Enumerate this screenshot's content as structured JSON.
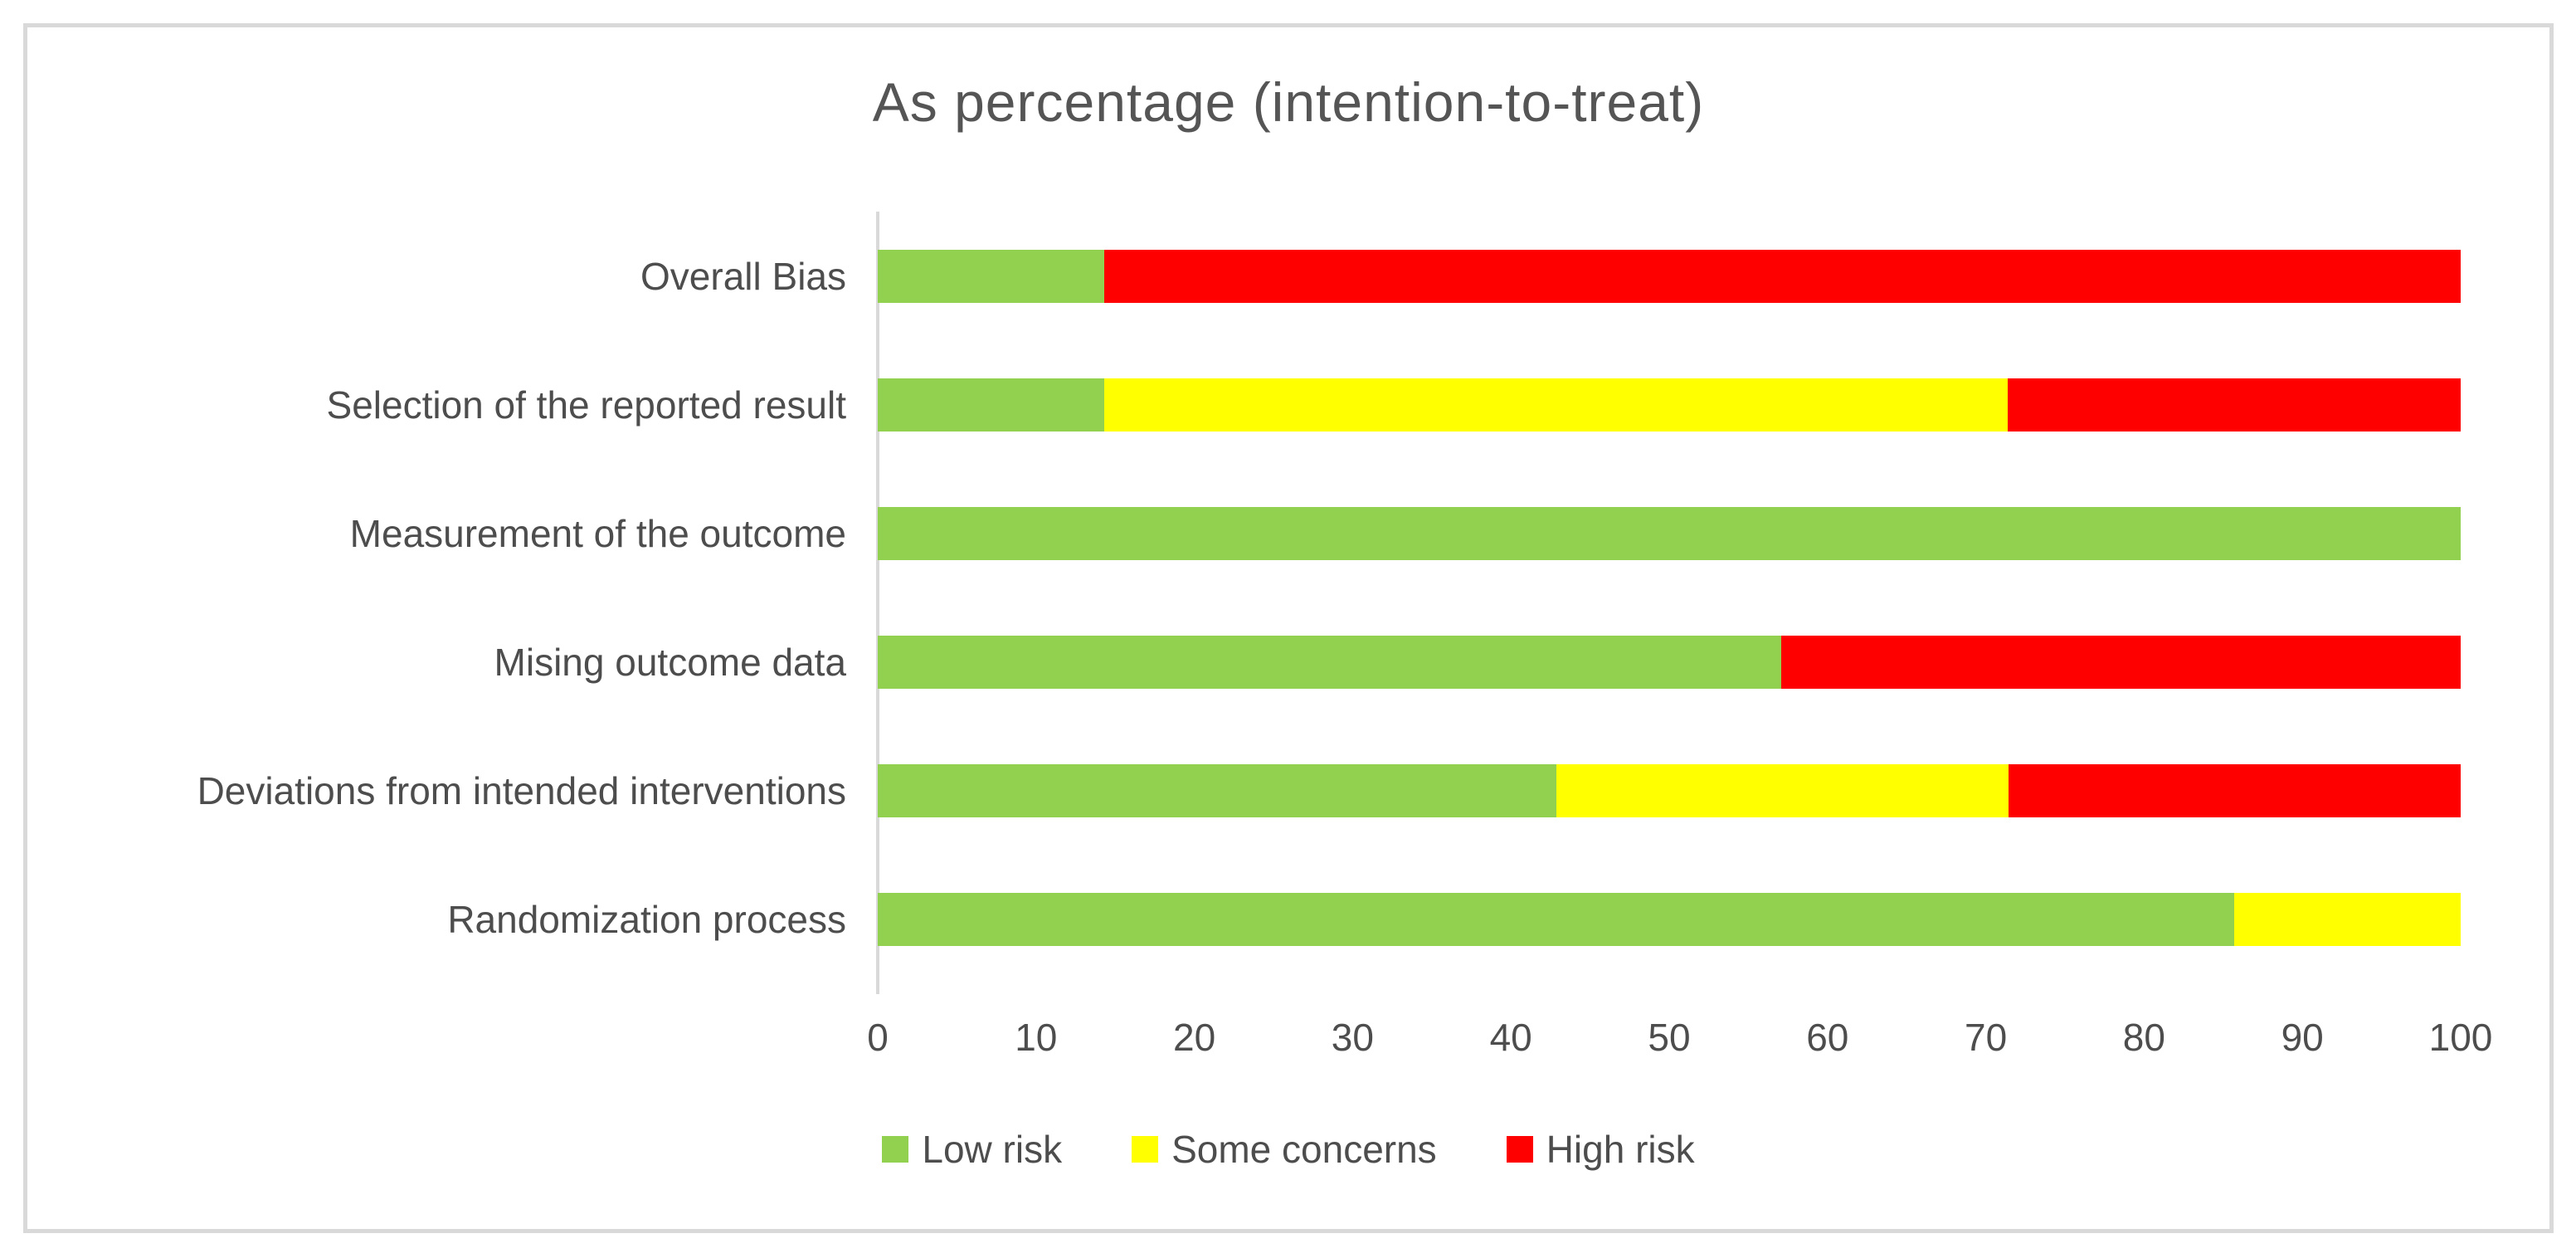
{
  "chart_data": {
    "type": "bar",
    "orientation": "horizontal",
    "stacked": true,
    "title": "As percentage (intention-to-treat)",
    "categories": [
      "Overall Bias",
      "Selection of the reported result",
      "Measurement of the outcome",
      "Mising outcome data",
      "Deviations from intended interventions",
      "Randomization process"
    ],
    "series": [
      {
        "name": "Low risk",
        "color": "#92D050",
        "values": [
          14.3,
          14.3,
          100,
          57.1,
          42.9,
          85.7
        ]
      },
      {
        "name": "Some concerns",
        "color": "#FFFF00",
        "values": [
          0,
          57.1,
          0,
          0,
          28.6,
          14.3
        ]
      },
      {
        "name": "High risk",
        "color": "#FF0000",
        "values": [
          85.7,
          28.6,
          0,
          42.9,
          28.6,
          0
        ]
      }
    ],
    "xlim": [
      0,
      100
    ],
    "x_ticks": [
      "0",
      "10",
      "20",
      "30",
      "40",
      "50",
      "60",
      "70",
      "80",
      "90",
      "100"
    ],
    "grid": false,
    "legend_position": "bottom"
  },
  "colors": {
    "frame_border": "#D9D9D9",
    "axis_line": "#D9D9D9",
    "text": "#595959"
  }
}
